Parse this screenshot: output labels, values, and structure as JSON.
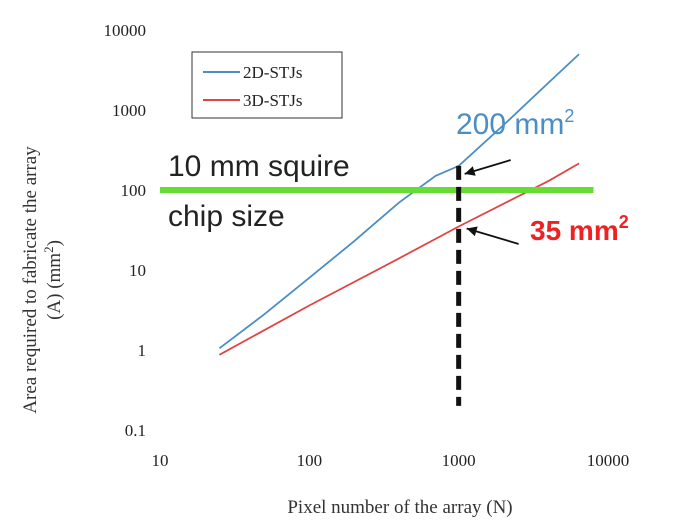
{
  "chart_data": {
    "type": "line",
    "xscale": "log",
    "yscale": "log",
    "xlim": [
      10,
      10000
    ],
    "ylim": [
      0.1,
      10000
    ],
    "x_ticks": [
      "10",
      "100",
      "1000",
      "10000"
    ],
    "y_ticks": [
      "0.1",
      "1",
      "10",
      "100",
      "1000",
      "10000"
    ],
    "xlabel": "Pixel number of the array (N)",
    "ylabel_line1": "Area required to fabricate the array",
    "ylabel_line2": "(A)  (mm",
    "ylabel_sup": "2",
    "ylabel_close": ")",
    "grid": false,
    "legend": "top-left",
    "series": [
      {
        "name": "2D-STJs",
        "color": "#4a8ec4",
        "x": [
          25,
          50,
          100,
          200,
          400,
          700,
          1000,
          2000,
          4000,
          6400
        ],
        "y": [
          1.05,
          2.8,
          8.0,
          23,
          70,
          150,
          200,
          650,
          2200,
          5000
        ]
      },
      {
        "name": "3D-STJs",
        "color": "#e04545",
        "x": [
          25,
          100,
          400,
          1000,
          4000,
          6400
        ],
        "y": [
          0.87,
          3.6,
          14,
          35,
          130,
          215
        ]
      }
    ],
    "annotations": {
      "chip_line": {
        "y": 100,
        "x_from": 10,
        "x_to": 8000,
        "color": "#66dd33"
      },
      "chip_label_1": "10 mm squire",
      "chip_label_2": "chip size",
      "vline": {
        "x": 1000,
        "y_from": 0.2,
        "y_to": 200
      },
      "label_2d_value": "200 mm",
      "label_2d_sup": "2",
      "label_2d_color": "#4a8ec4",
      "label_3d_value": "35 mm",
      "label_3d_sup": "2",
      "label_3d_color": "#ee2222"
    }
  }
}
